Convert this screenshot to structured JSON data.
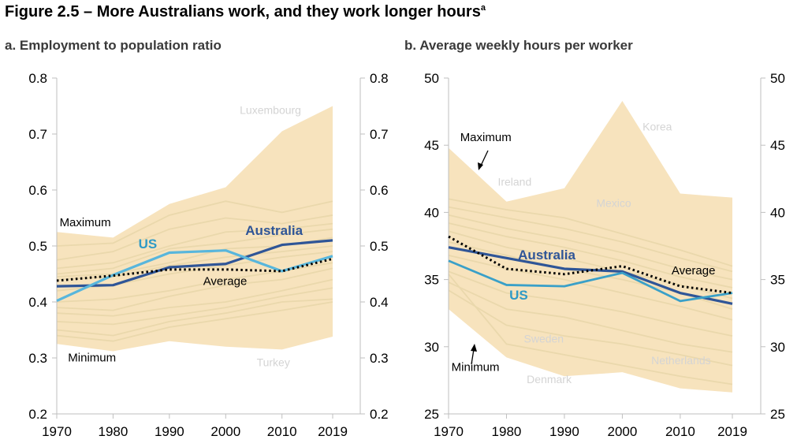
{
  "figure_title": "Figure 2.5 – More Australians work, and they work longer hours",
  "figure_note_marker": "a",
  "colors": {
    "band": "#f7e3bd",
    "background_lines": "#ead8ac",
    "australia": "#2f5597",
    "us": "#58b6dc",
    "us_b": "#3aa0c8",
    "average": "#000000",
    "faint_label": "#d4d4d4",
    "axis": "#bfbfbf"
  },
  "chart_data": [
    {
      "id": "panel-a",
      "type": "line",
      "title": "a. Employment to population ratio",
      "x": [
        1970,
        1980,
        1990,
        2000,
        2010,
        2019
      ],
      "x_tick_labels": [
        "1970",
        "1980",
        "1990",
        "2000",
        "2010",
        "2019"
      ],
      "ylim": [
        0.2,
        0.8
      ],
      "y_ticks": [
        0.2,
        0.3,
        0.4,
        0.5,
        0.6,
        0.7,
        0.8
      ],
      "y_tick_labels": [
        "0.2",
        "0.3",
        "0.4",
        "0.5",
        "0.6",
        "0.7",
        "0.8"
      ],
      "band": {
        "upper": [
          0.525,
          0.515,
          0.575,
          0.605,
          0.705,
          0.75
        ],
        "lower": [
          0.325,
          0.312,
          0.33,
          0.32,
          0.315,
          0.338
        ]
      },
      "series": [
        {
          "name": "Australia",
          "style": "australia",
          "values": [
            0.428,
            0.43,
            0.462,
            0.468,
            0.502,
            0.51
          ]
        },
        {
          "name": "US",
          "style": "us",
          "values": [
            0.402,
            0.448,
            0.488,
            0.492,
            0.455,
            0.482
          ]
        },
        {
          "name": "Average",
          "style": "average",
          "values": [
            0.438,
            0.447,
            0.458,
            0.458,
            0.455,
            0.477
          ]
        }
      ],
      "background_series": [
        [
          0.5,
          0.505,
          0.555,
          0.58,
          0.56,
          0.58
        ],
        [
          0.475,
          0.49,
          0.53,
          0.55,
          0.54,
          0.555
        ],
        [
          0.46,
          0.47,
          0.5,
          0.525,
          0.53,
          0.54
        ],
        [
          0.45,
          0.46,
          0.495,
          0.505,
          0.52,
          0.53
        ],
        [
          0.445,
          0.45,
          0.47,
          0.495,
          0.5,
          0.515
        ],
        [
          0.44,
          0.445,
          0.465,
          0.48,
          0.49,
          0.5
        ],
        [
          0.42,
          0.43,
          0.45,
          0.465,
          0.48,
          0.49
        ],
        [
          0.4,
          0.405,
          0.42,
          0.44,
          0.455,
          0.47
        ],
        [
          0.39,
          0.385,
          0.41,
          0.43,
          0.44,
          0.46
        ],
        [
          0.38,
          0.375,
          0.39,
          0.4,
          0.42,
          0.44
        ],
        [
          0.365,
          0.36,
          0.375,
          0.39,
          0.41,
          0.425
        ],
        [
          0.35,
          0.34,
          0.365,
          0.38,
          0.4,
          0.405
        ],
        [
          0.34,
          0.33,
          0.355,
          0.37,
          0.385,
          0.4
        ]
      ],
      "annotations": [
        {
          "id": "maximum",
          "text": "Maximum",
          "x": 1970.5,
          "y": 0.535,
          "style": "lab"
        },
        {
          "id": "minimum",
          "text": "Minimum",
          "x": 1972,
          "y": 0.294,
          "style": "lab"
        },
        {
          "id": "luxembourg",
          "text": "Luxembourg",
          "x": 2002.5,
          "y": 0.736,
          "style": "faint"
        },
        {
          "id": "turkey",
          "text": "Turkey",
          "x": 2005.5,
          "y": 0.285,
          "style": "faint"
        },
        {
          "id": "australia",
          "text": "Australia",
          "x": 2003.5,
          "y": 0.52,
          "style": "dark"
        },
        {
          "id": "us",
          "text": "US",
          "x": 1984.5,
          "y": 0.496,
          "style": "light"
        },
        {
          "id": "average",
          "text": "Average",
          "x": 1996,
          "y": 0.43,
          "style": "lab"
        }
      ]
    },
    {
      "id": "panel-b",
      "type": "line",
      "title": "b. Average weekly hours per worker",
      "x": [
        1970,
        1980,
        1990,
        2000,
        2010,
        2019
      ],
      "x_tick_labels": [
        "1970",
        "1980",
        "1990",
        "2000",
        "2010",
        "2019"
      ],
      "ylim": [
        25,
        50
      ],
      "y_ticks": [
        25,
        30,
        35,
        40,
        45,
        50
      ],
      "y_tick_labels": [
        "25",
        "30",
        "35",
        "40",
        "45",
        "50"
      ],
      "band": {
        "upper": [
          44.8,
          40.8,
          41.8,
          48.3,
          41.4,
          41.1
        ],
        "lower": [
          32.8,
          29.2,
          27.8,
          28.1,
          26.9,
          26.6
        ]
      },
      "series": [
        {
          "name": "Australia",
          "style": "australia",
          "values": [
            37.4,
            36.6,
            35.8,
            35.6,
            34.0,
            33.2
          ]
        },
        {
          "name": "US",
          "style": "us_b",
          "values": [
            36.4,
            34.6,
            34.5,
            35.5,
            33.4,
            34.0
          ]
        },
        {
          "name": "Average",
          "style": "average",
          "values": [
            38.2,
            35.8,
            35.4,
            36.0,
            34.5,
            34.0
          ]
        }
      ],
      "background_series": [
        [
          41.0,
          40.2,
          39.6,
          38.4,
          37.2,
          36.0
        ],
        [
          40.4,
          39.6,
          38.8,
          37.8,
          36.6,
          35.6
        ],
        [
          39.8,
          38.8,
          38.0,
          37.0,
          35.8,
          35.0
        ],
        [
          39.2,
          38.2,
          37.4,
          36.4,
          35.2,
          34.4
        ],
        [
          38.6,
          37.4,
          36.6,
          35.6,
          34.6,
          33.6
        ],
        [
          37.8,
          36.8,
          35.8,
          35.0,
          34.0,
          32.8
        ],
        [
          36.8,
          35.8,
          35.0,
          34.0,
          33.0,
          32.0
        ],
        [
          35.6,
          34.0,
          33.4,
          32.6,
          31.6,
          30.8
        ],
        [
          34.8,
          32.8,
          32.2,
          31.2,
          30.2,
          29.6
        ],
        [
          34.2,
          31.6,
          30.8,
          30.2,
          29.4,
          28.6
        ],
        [
          35.4,
          30.2,
          29.4,
          28.6,
          27.8,
          27.2
        ]
      ],
      "annotations": [
        {
          "id": "maximum",
          "text": "Maximum",
          "x": 1972,
          "y": 45.3,
          "style": "lab"
        },
        {
          "id": "minimum",
          "text": "Minimum",
          "x": 1970.5,
          "y": 28.2,
          "style": "lab"
        },
        {
          "id": "korea",
          "text": "Korea",
          "x": 2003.5,
          "y": 46.1,
          "style": "faint"
        },
        {
          "id": "ireland",
          "text": "Ireland",
          "x": 1978.5,
          "y": 42.0,
          "style": "faint"
        },
        {
          "id": "mexico",
          "text": "Mexico",
          "x": 1995.5,
          "y": 40.4,
          "style": "faint"
        },
        {
          "id": "sweden",
          "text": "Sweden",
          "x": 1983,
          "y": 30.3,
          "style": "faint"
        },
        {
          "id": "netherlands",
          "text": "Netherlands",
          "x": 2005,
          "y": 28.7,
          "style": "faint"
        },
        {
          "id": "denmark",
          "text": "Denmark",
          "x": 1983.5,
          "y": 27.3,
          "style": "faint"
        },
        {
          "id": "australia",
          "text": "Australia",
          "x": 1982,
          "y": 36.5,
          "style": "dark"
        },
        {
          "id": "us",
          "text": "US",
          "x": 1980.5,
          "y": 33.5,
          "style": "light"
        },
        {
          "id": "average",
          "text": "Average",
          "x": 2008.5,
          "y": 35.4,
          "style": "lab"
        }
      ]
    }
  ]
}
